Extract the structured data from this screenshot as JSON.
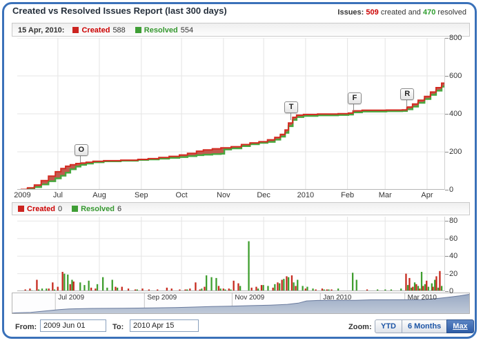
{
  "header": {
    "title": "Created vs Resolved Issues Report (last 300 days)",
    "issues_label": "Issues:",
    "created_count": "509",
    "created_word": "created and",
    "resolved_count": "470",
    "resolved_word": "resolved"
  },
  "colors": {
    "created_line": "#d42b22",
    "created_fill": "rgba(187,72,60,0.9)",
    "resolved_line": "#47a83f",
    "bar_red": "#c62a1e",
    "bar_green": "#3f9e2f",
    "panel_border": "#3a71b9",
    "nav_fill_top": "#9aaac4",
    "nav_fill_bottom": "#bfc9d8",
    "nav_stroke": "#68799c"
  },
  "top_legend": {
    "date": "15 Apr, 2010:",
    "created_label": "Created",
    "created_value": "588",
    "resolved_label": "Resolved",
    "resolved_value": "554"
  },
  "bottom_legend": {
    "created_label": "Created",
    "created_value": "0",
    "resolved_label": "Resolved",
    "resolved_value": "6"
  },
  "chart_data": [
    {
      "type": "line",
      "title": "Cumulative created vs resolved issues",
      "ylim": [
        0,
        800
      ],
      "yticks": [
        0,
        200,
        400,
        600,
        800
      ],
      "x_ticks": [
        {
          "f": 0.012,
          "label": "2009"
        },
        {
          "f": 0.095,
          "label": "Jul"
        },
        {
          "f": 0.192,
          "label": "Aug"
        },
        {
          "f": 0.29,
          "label": "Sep"
        },
        {
          "f": 0.384,
          "label": "Oct"
        },
        {
          "f": 0.482,
          "label": "Nov"
        },
        {
          "f": 0.576,
          "label": "Dec"
        },
        {
          "f": 0.674,
          "label": "2010"
        },
        {
          "f": 0.772,
          "label": "Feb"
        },
        {
          "f": 0.86,
          "label": "Mar"
        },
        {
          "f": 0.958,
          "label": "Apr"
        }
      ],
      "series": [
        {
          "name": "Created",
          "points": [
            [
              0.008,
              2
            ],
            [
              0.024,
              10
            ],
            [
              0.04,
              25
            ],
            [
              0.056,
              48
            ],
            [
              0.073,
              72
            ],
            [
              0.089,
              95
            ],
            [
              0.102,
              112
            ],
            [
              0.113,
              124
            ],
            [
              0.124,
              132
            ],
            [
              0.137,
              138
            ],
            [
              0.148,
              141
            ],
            [
              0.161,
              145
            ],
            [
              0.177,
              150
            ],
            [
              0.202,
              153
            ],
            [
              0.242,
              156
            ],
            [
              0.282,
              160
            ],
            [
              0.306,
              164
            ],
            [
              0.331,
              170
            ],
            [
              0.355,
              176
            ],
            [
              0.379,
              183
            ],
            [
              0.398,
              192
            ],
            [
              0.419,
              203
            ],
            [
              0.435,
              210
            ],
            [
              0.456,
              216
            ],
            [
              0.476,
              221
            ],
            [
              0.5,
              227
            ],
            [
              0.524,
              238
            ],
            [
              0.544,
              247
            ],
            [
              0.565,
              253
            ],
            [
              0.585,
              263
            ],
            [
              0.602,
              276
            ],
            [
              0.615,
              292
            ],
            [
              0.626,
              315
            ],
            [
              0.634,
              352
            ],
            [
              0.644,
              382
            ],
            [
              0.653,
              393
            ],
            [
              0.669,
              397
            ],
            [
              0.702,
              399
            ],
            [
              0.75,
              401
            ],
            [
              0.774,
              404
            ],
            [
              0.785,
              416
            ],
            [
              0.806,
              419
            ],
            [
              0.863,
              420
            ],
            [
              0.9,
              421
            ],
            [
              0.911,
              436
            ],
            [
              0.924,
              452
            ],
            [
              0.937,
              472
            ],
            [
              0.952,
              492
            ],
            [
              0.966,
              515
            ],
            [
              0.979,
              538
            ],
            [
              0.992,
              562
            ],
            [
              1.0,
              588
            ]
          ]
        },
        {
          "name": "Resolved",
          "points": [
            [
              0.008,
              0
            ],
            [
              0.024,
              5
            ],
            [
              0.04,
              14
            ],
            [
              0.056,
              28
            ],
            [
              0.073,
              45
            ],
            [
              0.089,
              60
            ],
            [
              0.102,
              74
            ],
            [
              0.113,
              90
            ],
            [
              0.124,
              108
            ],
            [
              0.137,
              122
            ],
            [
              0.148,
              131
            ],
            [
              0.161,
              138
            ],
            [
              0.177,
              145
            ],
            [
              0.202,
              150
            ],
            [
              0.242,
              153
            ],
            [
              0.282,
              157
            ],
            [
              0.306,
              160
            ],
            [
              0.331,
              164
            ],
            [
              0.355,
              168
            ],
            [
              0.379,
              172
            ],
            [
              0.398,
              177
            ],
            [
              0.419,
              182
            ],
            [
              0.435,
              185
            ],
            [
              0.456,
              188
            ],
            [
              0.476,
              190
            ],
            [
              0.484,
              212
            ],
            [
              0.5,
              218
            ],
            [
              0.524,
              230
            ],
            [
              0.544,
              240
            ],
            [
              0.565,
              247
            ],
            [
              0.585,
              252
            ],
            [
              0.602,
              264
            ],
            [
              0.615,
              280
            ],
            [
              0.626,
              300
            ],
            [
              0.634,
              335
            ],
            [
              0.644,
              368
            ],
            [
              0.653,
              383
            ],
            [
              0.669,
              389
            ],
            [
              0.702,
              392
            ],
            [
              0.75,
              394
            ],
            [
              0.774,
              396
            ],
            [
              0.785,
              408
            ],
            [
              0.806,
              412
            ],
            [
              0.863,
              414
            ],
            [
              0.9,
              415
            ],
            [
              0.911,
              424
            ],
            [
              0.924,
              438
            ],
            [
              0.937,
              458
            ],
            [
              0.952,
              478
            ],
            [
              0.966,
              500
            ],
            [
              0.979,
              522
            ],
            [
              0.992,
              543
            ],
            [
              1.0,
              554
            ]
          ]
        }
      ],
      "flags": [
        {
          "label": "O",
          "f": 0.148
        },
        {
          "label": "T",
          "f": 0.639
        },
        {
          "label": "F",
          "f": 0.787
        },
        {
          "label": "R",
          "f": 0.91
        }
      ]
    },
    {
      "type": "bar",
      "title": "Daily created vs resolved issues",
      "ylim": [
        0,
        85
      ],
      "yticks": [
        0,
        20,
        40,
        60,
        80
      ],
      "bars": [
        [
          0.021,
          2,
          0
        ],
        [
          0.032,
          3,
          1
        ],
        [
          0.048,
          13,
          2
        ],
        [
          0.056,
          0,
          3
        ],
        [
          0.066,
          0,
          3
        ],
        [
          0.076,
          3,
          0
        ],
        [
          0.085,
          10,
          2
        ],
        [
          0.097,
          5,
          0
        ],
        [
          0.108,
          22,
          20
        ],
        [
          0.116,
          0,
          19
        ],
        [
          0.126,
          8,
          13
        ],
        [
          0.134,
          11,
          0
        ],
        [
          0.145,
          0,
          10
        ],
        [
          0.155,
          0,
          7
        ],
        [
          0.165,
          0,
          12
        ],
        [
          0.175,
          4,
          0
        ],
        [
          0.185,
          3,
          8
        ],
        [
          0.198,
          0,
          16
        ],
        [
          0.208,
          0,
          4
        ],
        [
          0.22,
          0,
          13
        ],
        [
          0.232,
          5,
          4
        ],
        [
          0.247,
          5,
          0
        ],
        [
          0.262,
          3,
          0
        ],
        [
          0.278,
          2,
          2
        ],
        [
          0.295,
          3,
          0
        ],
        [
          0.31,
          2,
          0
        ],
        [
          0.33,
          2,
          0
        ],
        [
          0.352,
          4,
          0
        ],
        [
          0.363,
          3,
          0
        ],
        [
          0.382,
          2,
          0
        ],
        [
          0.395,
          2,
          2
        ],
        [
          0.406,
          3,
          0
        ],
        [
          0.419,
          10,
          0
        ],
        [
          0.429,
          2,
          3
        ],
        [
          0.44,
          5,
          18
        ],
        [
          0.452,
          0,
          16
        ],
        [
          0.463,
          0,
          15
        ],
        [
          0.473,
          6,
          3
        ],
        [
          0.484,
          3,
          2
        ],
        [
          0.497,
          3,
          2
        ],
        [
          0.508,
          12,
          0
        ],
        [
          0.519,
          9,
          6
        ],
        [
          0.539,
          0,
          57
        ],
        [
          0.55,
          4,
          0
        ],
        [
          0.561,
          5,
          3
        ],
        [
          0.573,
          7,
          7
        ],
        [
          0.584,
          0,
          6
        ],
        [
          0.6,
          4,
          8
        ],
        [
          0.611,
          10,
          9
        ],
        [
          0.621,
          13,
          14
        ],
        [
          0.632,
          17,
          16
        ],
        [
          0.644,
          18,
          10
        ],
        [
          0.653,
          6,
          13
        ],
        [
          0.665,
          0,
          6
        ],
        [
          0.676,
          3,
          5
        ],
        [
          0.689,
          0,
          3
        ],
        [
          0.7,
          2,
          0
        ],
        [
          0.715,
          3,
          2
        ],
        [
          0.726,
          2,
          2
        ],
        [
          0.737,
          2,
          0
        ],
        [
          0.748,
          0,
          3
        ],
        [
          0.782,
          0,
          21
        ],
        [
          0.791,
          0,
          13
        ],
        [
          0.82,
          2,
          0
        ],
        [
          0.84,
          0,
          2
        ],
        [
          0.858,
          0,
          2
        ],
        [
          0.872,
          0,
          2
        ],
        [
          0.895,
          0,
          3
        ],
        [
          0.911,
          20,
          7
        ],
        [
          0.919,
          15,
          4
        ],
        [
          0.927,
          5,
          10
        ],
        [
          0.935,
          8,
          6
        ],
        [
          0.943,
          3,
          22
        ],
        [
          0.951,
          6,
          8
        ],
        [
          0.959,
          12,
          5
        ],
        [
          0.967,
          0,
          9
        ],
        [
          0.974,
          5,
          13
        ],
        [
          0.982,
          17,
          4
        ],
        [
          0.99,
          23,
          6
        ],
        [
          0.998,
          0,
          6
        ]
      ]
    },
    {
      "type": "area",
      "title": "navigator",
      "x_ticks": [
        {
          "f": 0.094,
          "label": "Jul 2009"
        },
        {
          "f": 0.289,
          "label": "Sep 2009"
        },
        {
          "f": 0.481,
          "label": "Nov 2009"
        },
        {
          "f": 0.674,
          "label": "Jan 2010"
        },
        {
          "f": 0.859,
          "label": "Mar 2010"
        }
      ],
      "points": [
        [
          0,
          0.01
        ],
        [
          0.008,
          0.02
        ],
        [
          0.04,
          0.04
        ],
        [
          0.073,
          0.116
        ],
        [
          0.102,
          0.181
        ],
        [
          0.124,
          0.213
        ],
        [
          0.148,
          0.227
        ],
        [
          0.177,
          0.242
        ],
        [
          0.242,
          0.252
        ],
        [
          0.306,
          0.265
        ],
        [
          0.355,
          0.284
        ],
        [
          0.398,
          0.31
        ],
        [
          0.435,
          0.339
        ],
        [
          0.476,
          0.356
        ],
        [
          0.524,
          0.384
        ],
        [
          0.565,
          0.408
        ],
        [
          0.602,
          0.445
        ],
        [
          0.626,
          0.508
        ],
        [
          0.644,
          0.616
        ],
        [
          0.669,
          0.64
        ],
        [
          0.75,
          0.647
        ],
        [
          0.785,
          0.671
        ],
        [
          0.863,
          0.677
        ],
        [
          0.9,
          0.679
        ],
        [
          0.924,
          0.729
        ],
        [
          0.952,
          0.794
        ],
        [
          0.979,
          0.868
        ],
        [
          1,
          0.948
        ]
      ]
    }
  ],
  "footer": {
    "from_label": "From:",
    "from_value": "2009 Jun 01",
    "to_label": "To:",
    "to_value": "2010 Apr 15",
    "zoom_label": "Zoom:",
    "buttons": [
      {
        "label": "YTD",
        "active": false
      },
      {
        "label": "6 Months",
        "active": false
      },
      {
        "label": "Max",
        "active": true
      }
    ]
  }
}
